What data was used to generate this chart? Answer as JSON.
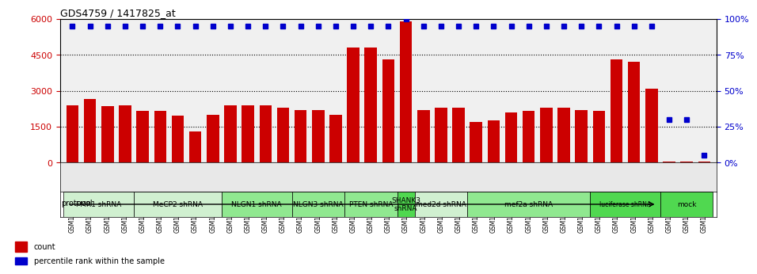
{
  "title": "GDS4759 / 1417825_at",
  "samples": [
    "GSM1145756",
    "GSM1145757",
    "GSM1145758",
    "GSM1145759",
    "GSM1145764",
    "GSM1145765",
    "GSM1145766",
    "GSM1145767",
    "GSM1145768",
    "GSM1145769",
    "GSM1145770",
    "GSM1145771",
    "GSM1145772",
    "GSM1145773",
    "GSM1145774",
    "GSM1145775",
    "GSM1145776",
    "GSM1145777",
    "GSM1145778",
    "GSM1145779",
    "GSM1145780",
    "GSM1145781",
    "GSM1145782",
    "GSM1145783",
    "GSM1145784",
    "GSM1145785",
    "GSM1145786",
    "GSM1145787",
    "GSM1145788",
    "GSM1145789",
    "GSM1145760",
    "GSM1145761",
    "GSM1145762",
    "GSM1145763",
    "GSM1145942",
    "GSM1145943",
    "GSM1145944"
  ],
  "counts": [
    2400,
    2650,
    2350,
    2400,
    2150,
    2150,
    1950,
    1300,
    2000,
    2400,
    2400,
    2400,
    2300,
    2200,
    2200,
    2000,
    4800,
    4800,
    4300,
    5900,
    2200,
    2300,
    2300,
    1700,
    1750,
    2100,
    2150,
    2300,
    2300,
    2200,
    2150,
    4300,
    4200,
    3100,
    60,
    60,
    60
  ],
  "percentiles": [
    95,
    95,
    95,
    95,
    95,
    95,
    95,
    95,
    95,
    95,
    95,
    95,
    95,
    95,
    95,
    95,
    95,
    95,
    95,
    100,
    95,
    95,
    95,
    95,
    95,
    95,
    95,
    95,
    95,
    95,
    95,
    95,
    95,
    95,
    30,
    30,
    5
  ],
  "protocols": [
    {
      "label": "FMR1 shRNA",
      "start": 0,
      "end": 4,
      "color": "#d0f0d0"
    },
    {
      "label": "MeCP2 shRNA",
      "start": 4,
      "end": 9,
      "color": "#d0f0d0"
    },
    {
      "label": "NLGN1 shRNA",
      "start": 9,
      "end": 13,
      "color": "#90e890"
    },
    {
      "label": "NLGN3 shRNA",
      "start": 13,
      "end": 16,
      "color": "#90e890"
    },
    {
      "label": "PTEN shRNA",
      "start": 16,
      "end": 19,
      "color": "#90e890"
    },
    {
      "label": "SHANK3\nshRNA",
      "start": 19,
      "end": 20,
      "color": "#50d850"
    },
    {
      "label": "med2d shRNA",
      "start": 20,
      "end": 23,
      "color": "#d0f0d0"
    },
    {
      "label": "mef2a shRNA",
      "start": 23,
      "end": 30,
      "color": "#90e890"
    },
    {
      "label": "luciferase shRNA",
      "start": 30,
      "end": 34,
      "color": "#50d850"
    },
    {
      "label": "mock",
      "start": 34,
      "end": 37,
      "color": "#50d850"
    }
  ],
  "bar_color": "#cc0000",
  "dot_color": "#0000cc",
  "ylim_left": [
    0,
    6000
  ],
  "ylim_right": [
    0,
    100
  ],
  "yticks_left": [
    0,
    1500,
    3000,
    4500,
    6000
  ],
  "yticks_right": [
    0,
    25,
    50,
    75,
    100
  ],
  "background_color": "#e8e8e8"
}
